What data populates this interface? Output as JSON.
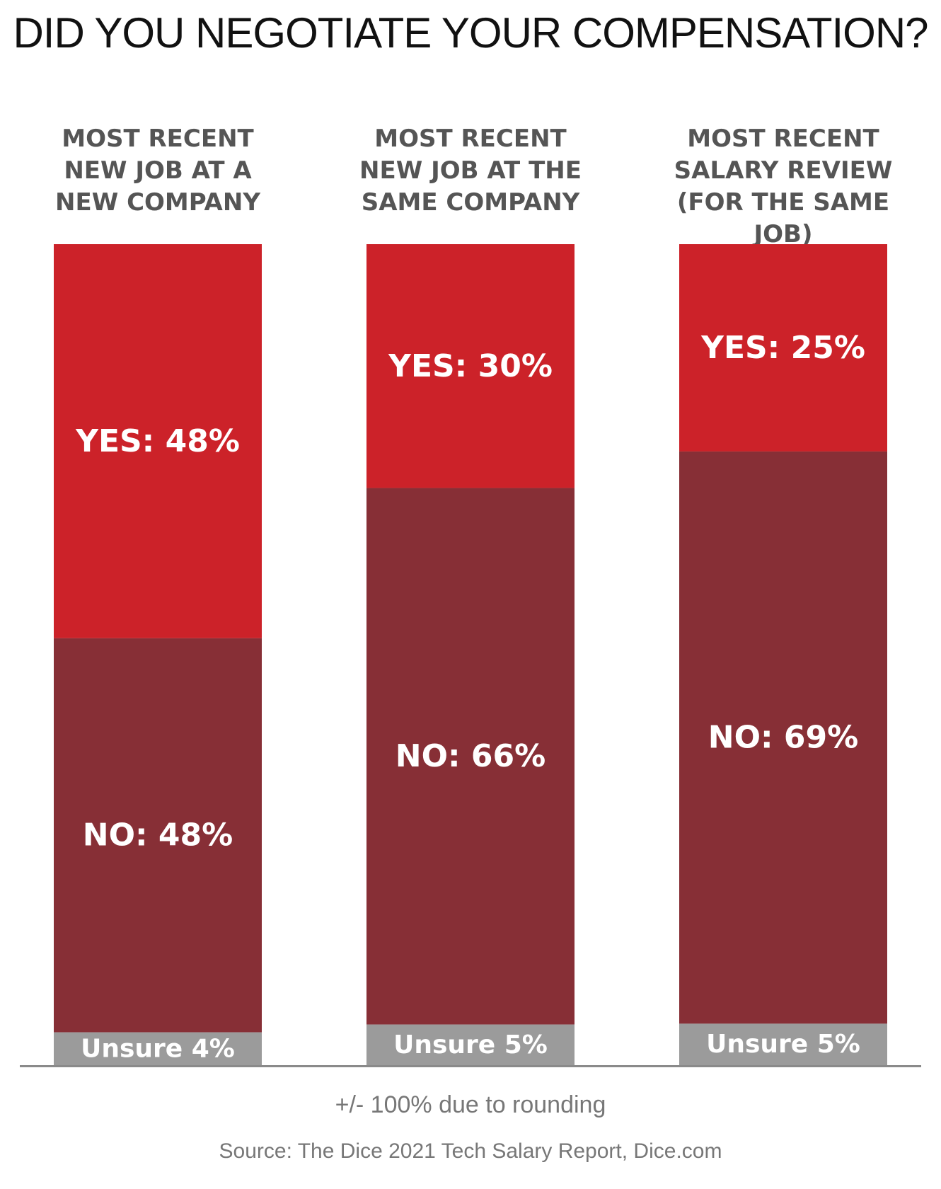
{
  "chart_data": {
    "type": "bar",
    "stacked": true,
    "orientation": "vertical",
    "title": "DID YOU NEGOTIATE YOUR COMPENSATION?",
    "categories": [
      "MOST RECENT\nNEW JOB AT A\nNEW COMPANY",
      "MOST RECENT\nNEW JOB AT THE\nSAME COMPANY",
      "MOST RECENT\nSALARY REVIEW\n(FOR THE SAME JOB)"
    ],
    "series": [
      {
        "name": "YES",
        "values": [
          48,
          30,
          25
        ],
        "color": "#cc2229",
        "labels": [
          "YES: 48%",
          "YES: 30%",
          "YES: 25%"
        ]
      },
      {
        "name": "NO",
        "values": [
          48,
          66,
          69
        ],
        "color": "#872f36",
        "labels": [
          "NO: 48%",
          "NO: 66%",
          "NO: 69%"
        ]
      },
      {
        "name": "Unsure",
        "values": [
          4,
          5,
          5
        ],
        "color": "#9b9b9b",
        "labels": [
          "Unsure 4%",
          "Unsure 5%",
          "Unsure 5%"
        ]
      }
    ],
    "unit": "%",
    "legend": "none",
    "grid": false
  },
  "footnote": "+/- 100% due to rounding",
  "source": "Source: The Dice 2021 Tech Salary Report, Dice.com"
}
